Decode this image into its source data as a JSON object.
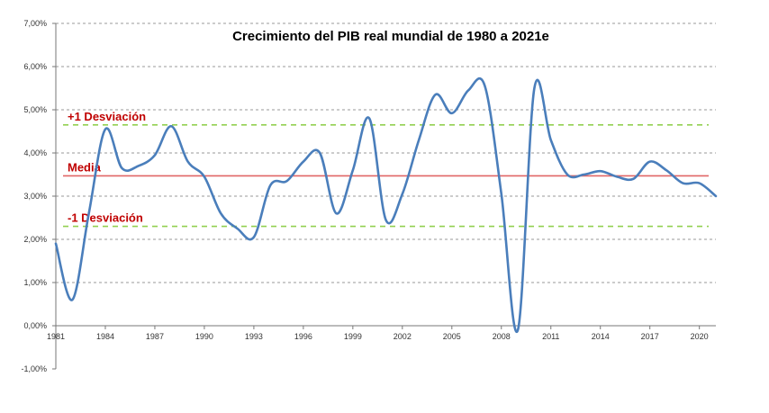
{
  "chart_data": {
    "type": "line",
    "title": "Crecimiento del PIB real mundial de 1980 a 2021e",
    "xlabel": "",
    "ylabel": "",
    "xlim": [
      1981,
      2021
    ],
    "ylim": [
      -1.0,
      7.0
    ],
    "grid": true,
    "x_ticks": [
      "1981",
      "1984",
      "1987",
      "1990",
      "1993",
      "1996",
      "1999",
      "2002",
      "2005",
      "2008",
      "2011",
      "2014",
      "2017",
      "2020"
    ],
    "y_ticks": [
      "-1,00%",
      "0,00%",
      "1,00%",
      "2,00%",
      "3,00%",
      "4,00%",
      "5,00%",
      "6,00%",
      "7,00%"
    ],
    "y_tick_values": [
      -1,
      0,
      1,
      2,
      3,
      4,
      5,
      6,
      7
    ],
    "series": [
      {
        "color": "#4a7ebb",
        "x": [
          1981,
          1982,
          1983,
          1984,
          1985,
          1986,
          1987,
          1988,
          1989,
          1990,
          1991,
          1992,
          1993,
          1994,
          1995,
          1996,
          1997,
          1998,
          1999,
          2000,
          2001,
          2002,
          2003,
          2004,
          2005,
          2006,
          2007,
          2008,
          2009,
          2010,
          2011,
          2012,
          2013,
          2014,
          2015,
          2016,
          2017,
          2018,
          2019,
          2020,
          2021
        ],
        "values": [
          1.9,
          0.6,
          2.6,
          4.55,
          3.65,
          3.7,
          3.95,
          4.62,
          3.8,
          3.45,
          2.6,
          2.25,
          2.05,
          3.25,
          3.35,
          3.8,
          4.0,
          2.6,
          3.6,
          4.8,
          2.45,
          3.05,
          4.3,
          5.35,
          4.92,
          5.45,
          5.55,
          3.05,
          -0.1,
          5.5,
          4.3,
          3.5,
          3.5,
          3.58,
          3.45,
          3.4,
          3.8,
          3.6,
          3.3,
          3.3,
          3.0
        ]
      }
    ],
    "reference_lines": [
      {
        "label": "+1 Desviación",
        "value": 4.65,
        "color": "#92d050",
        "style": "dashed"
      },
      {
        "label": "Media",
        "value": 3.47,
        "color": "#e06666",
        "style": "solid"
      },
      {
        "label": "-1 Desviación",
        "value": 2.3,
        "color": "#92d050",
        "style": "dashed"
      }
    ]
  }
}
